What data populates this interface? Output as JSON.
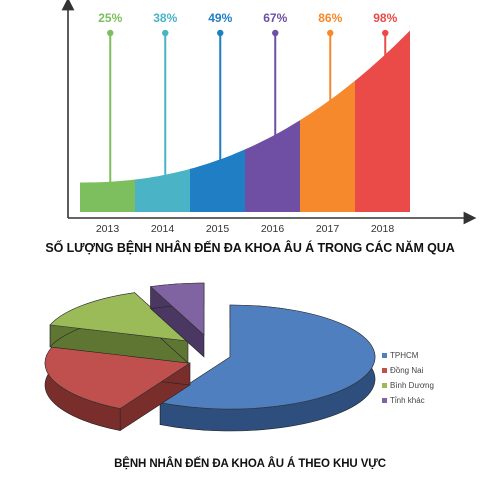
{
  "chart_data": [
    {
      "type": "area",
      "title": "SỐ LƯỢNG BỆNH NHÂN ĐẾN ĐA KHOA ÂU Á TRONG CÁC NĂM QUA",
      "categories": [
        "2013",
        "2014",
        "2015",
        "2016",
        "2017",
        "2018"
      ],
      "labels": [
        "25%",
        "38%",
        "49%",
        "67%",
        "86%",
        "98%"
      ],
      "values": [
        25,
        38,
        49,
        67,
        86,
        98
      ],
      "colors": [
        "#7dbf5f",
        "#4ab3c6",
        "#1f7ec4",
        "#6e4fa3",
        "#f5892b",
        "#ea4a48"
      ]
    },
    {
      "type": "pie",
      "title": "BỆNH NHÂN ĐẾN ĐA KHOA ÂU Á THEO KHU VỰC",
      "legend": [
        "TPHCM",
        "Đồng Nai",
        "Bình Dương",
        "Tỉnh khác"
      ],
      "values": [
        58,
        22,
        14,
        6
      ],
      "colors": [
        "#4f7fbf",
        "#c0504d",
        "#9bbb59",
        "#8064a2"
      ],
      "legend_position": "right"
    }
  ]
}
